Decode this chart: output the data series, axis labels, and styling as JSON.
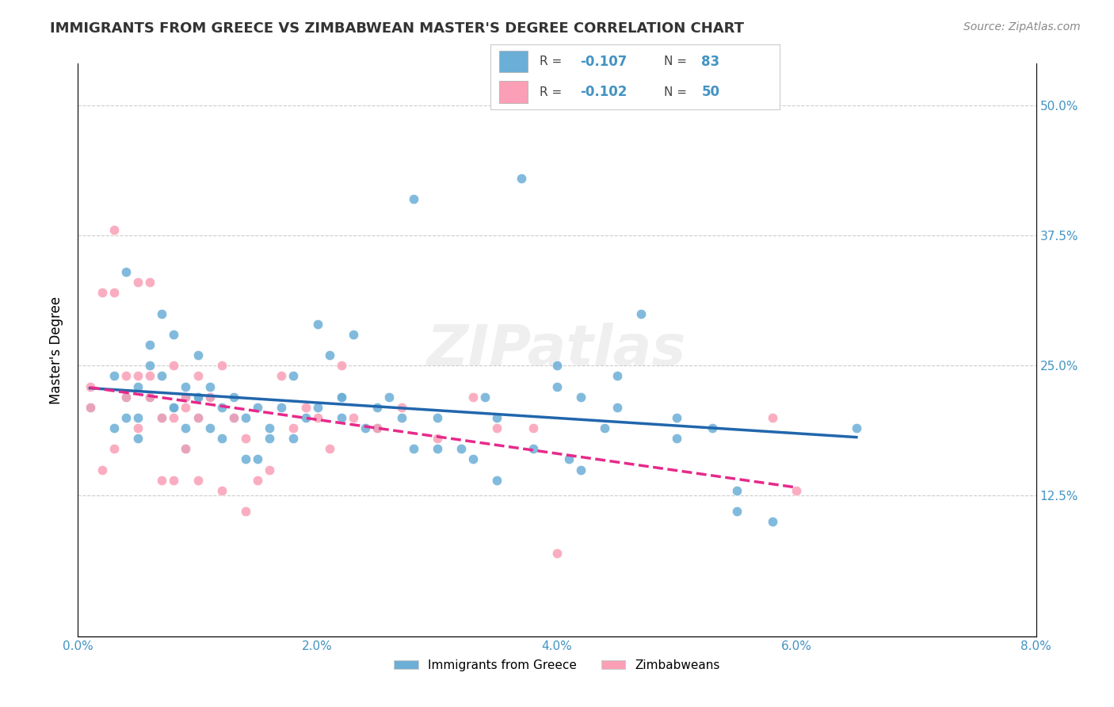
{
  "title": "IMMIGRANTS FROM GREECE VS ZIMBABWEAN MASTER'S DEGREE CORRELATION CHART",
  "source": "Source: ZipAtlas.com",
  "ylabel": "Master's Degree",
  "ytick_labels": [
    "12.5%",
    "25.0%",
    "37.5%",
    "50.0%"
  ],
  "ytick_values": [
    0.125,
    0.25,
    0.375,
    0.5
  ],
  "xlim": [
    0.0,
    0.08
  ],
  "ylim": [
    -0.01,
    0.54
  ],
  "legend_r1": "-0.107",
  "legend_n1": "83",
  "legend_r2": "-0.102",
  "legend_n2": "50",
  "color_blue": "#6baed6",
  "color_pink": "#fa9fb5",
  "color_blue_line": "#2166ac",
  "color_pink_line": "#e7298a",
  "color_axis_label": "#4393c3",
  "watermark": "ZIPatlas",
  "legend_label1": "Immigrants from Greece",
  "legend_label2": "Zimbabweans",
  "blue_x": [
    0.001,
    0.003,
    0.003,
    0.004,
    0.004,
    0.005,
    0.005,
    0.005,
    0.006,
    0.006,
    0.007,
    0.007,
    0.008,
    0.008,
    0.009,
    0.009,
    0.009,
    0.01,
    0.01,
    0.01,
    0.011,
    0.011,
    0.012,
    0.012,
    0.013,
    0.013,
    0.014,
    0.015,
    0.015,
    0.016,
    0.017,
    0.018,
    0.019,
    0.02,
    0.021,
    0.022,
    0.022,
    0.023,
    0.024,
    0.025,
    0.026,
    0.027,
    0.028,
    0.03,
    0.032,
    0.033,
    0.034,
    0.035,
    0.037,
    0.038,
    0.04,
    0.041,
    0.042,
    0.044,
    0.045,
    0.047,
    0.05,
    0.053,
    0.055,
    0.058,
    0.004,
    0.006,
    0.007,
    0.008,
    0.009,
    0.01,
    0.011,
    0.013,
    0.014,
    0.016,
    0.018,
    0.02,
    0.022,
    0.025,
    0.028,
    0.03,
    0.035,
    0.04,
    0.042,
    0.045,
    0.05,
    0.055,
    0.065
  ],
  "blue_y": [
    0.21,
    0.24,
    0.19,
    0.22,
    0.2,
    0.23,
    0.18,
    0.2,
    0.25,
    0.22,
    0.2,
    0.24,
    0.28,
    0.21,
    0.22,
    0.19,
    0.17,
    0.26,
    0.2,
    0.22,
    0.23,
    0.19,
    0.21,
    0.18,
    0.2,
    0.22,
    0.2,
    0.21,
    0.16,
    0.19,
    0.21,
    0.24,
    0.2,
    0.29,
    0.26,
    0.22,
    0.2,
    0.28,
    0.19,
    0.21,
    0.22,
    0.2,
    0.41,
    0.2,
    0.17,
    0.16,
    0.22,
    0.2,
    0.43,
    0.17,
    0.23,
    0.16,
    0.15,
    0.19,
    0.21,
    0.3,
    0.2,
    0.19,
    0.13,
    0.1,
    0.34,
    0.27,
    0.3,
    0.21,
    0.23,
    0.22,
    0.22,
    0.2,
    0.16,
    0.18,
    0.18,
    0.21,
    0.22,
    0.19,
    0.17,
    0.17,
    0.14,
    0.25,
    0.22,
    0.24,
    0.18,
    0.11,
    0.19
  ],
  "pink_x": [
    0.001,
    0.001,
    0.002,
    0.002,
    0.003,
    0.003,
    0.004,
    0.004,
    0.005,
    0.005,
    0.006,
    0.006,
    0.007,
    0.007,
    0.008,
    0.008,
    0.009,
    0.009,
    0.01,
    0.01,
    0.011,
    0.012,
    0.013,
    0.014,
    0.015,
    0.016,
    0.017,
    0.018,
    0.019,
    0.02,
    0.021,
    0.022,
    0.023,
    0.025,
    0.027,
    0.03,
    0.033,
    0.035,
    0.038,
    0.04,
    0.003,
    0.005,
    0.006,
    0.008,
    0.009,
    0.01,
    0.012,
    0.014,
    0.058,
    0.06
  ],
  "pink_y": [
    0.23,
    0.21,
    0.32,
    0.15,
    0.32,
    0.17,
    0.22,
    0.24,
    0.24,
    0.19,
    0.24,
    0.22,
    0.2,
    0.14,
    0.14,
    0.2,
    0.21,
    0.22,
    0.24,
    0.2,
    0.22,
    0.25,
    0.2,
    0.18,
    0.14,
    0.15,
    0.24,
    0.19,
    0.21,
    0.2,
    0.17,
    0.25,
    0.2,
    0.19,
    0.21,
    0.18,
    0.22,
    0.19,
    0.19,
    0.07,
    0.38,
    0.33,
    0.33,
    0.25,
    0.17,
    0.14,
    0.13,
    0.11,
    0.2,
    0.13
  ]
}
